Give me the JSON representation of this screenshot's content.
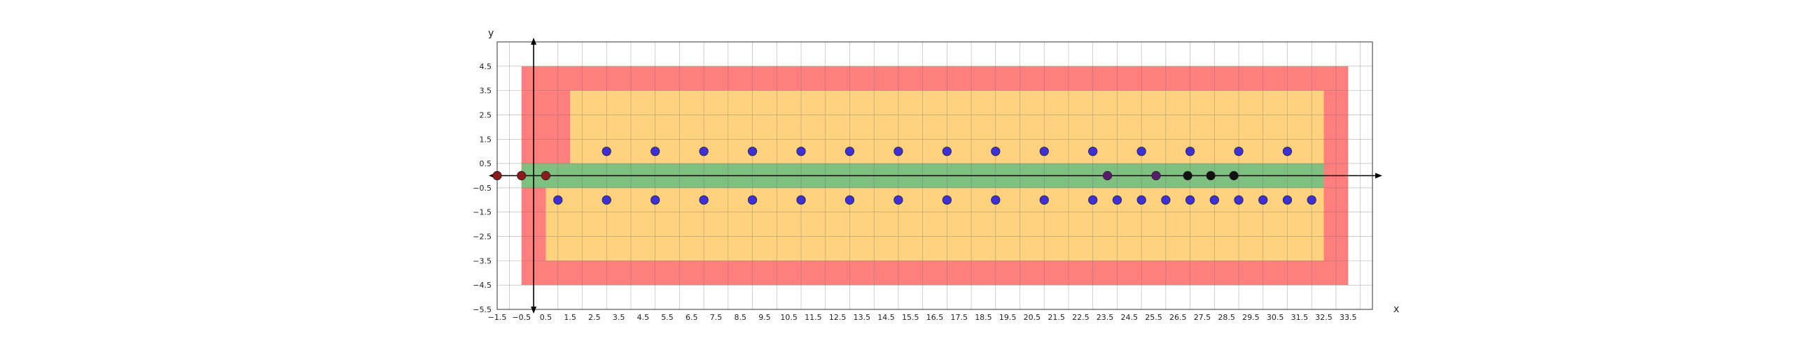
{
  "chart_data": {
    "type": "scatter",
    "title": "",
    "xlabel": "x",
    "ylabel": "y",
    "xlim": [
      -1.5,
      34.5
    ],
    "ylim": [
      -5.5,
      5.5
    ],
    "xticks": [
      -1.5,
      -0.5,
      0.5,
      1.5,
      2.5,
      3.5,
      4.5,
      5.5,
      6.5,
      7.5,
      8.5,
      9.5,
      10.5,
      11.5,
      12.5,
      13.5,
      14.5,
      15.5,
      16.5,
      17.5,
      18.5,
      19.5,
      20.5,
      21.5,
      22.5,
      23.5,
      24.5,
      25.5,
      26.5,
      27.5,
      28.5,
      29.5,
      30.5,
      31.5,
      32.5,
      33.5
    ],
    "xtick_labels": [
      "−1.5",
      "−0.5",
      "0.5",
      "1.5",
      "2.5",
      "3.5",
      "4.5",
      "5.5",
      "6.5",
      "7.5",
      "8.5",
      "9.5",
      "10.5",
      "11.5",
      "12.5",
      "13.5",
      "14.5",
      "15.5",
      "16.5",
      "17.5",
      "18.5",
      "19.5",
      "20.5",
      "21.5",
      "22.5",
      "23.5",
      "24.5",
      "25.5",
      "26.5",
      "27.5",
      "28.5",
      "29.5",
      "30.5",
      "31.5",
      "32.5",
      "33.5"
    ],
    "yticks": [
      -5.5,
      -4.5,
      -3.5,
      -2.5,
      -1.5,
      -0.5,
      0.5,
      1.5,
      2.5,
      3.5,
      4.5
    ],
    "ytick_labels": [
      "−5.5",
      "−4.5",
      "−3.5",
      "−2.5",
      "−1.5",
      "−0.5",
      "0.5",
      "1.5",
      "2.5",
      "3.5",
      "4.5"
    ],
    "grid": true,
    "regions": [
      {
        "color": "#ff7f7f",
        "x": [
          -0.5,
          33.5
        ],
        "y": [
          -4.5,
          4.5
        ]
      },
      {
        "color": "#ffd27f",
        "x": [
          1.5,
          32.5
        ],
        "y": [
          0.5,
          3.5
        ]
      },
      {
        "color": "#ffd27f",
        "x": [
          0.5,
          32.5
        ],
        "y": [
          -3.5,
          -0.5
        ]
      },
      {
        "color": "#7fbf7f",
        "x": [
          -0.5,
          32.5
        ],
        "y": [
          -0.5,
          0.5
        ]
      }
    ],
    "series": [
      {
        "color": "#3f2fd8",
        "points": [
          [
            3,
            1
          ],
          [
            5,
            1
          ],
          [
            7,
            1
          ],
          [
            9,
            1
          ],
          [
            11,
            1
          ],
          [
            13,
            1
          ],
          [
            15,
            1
          ],
          [
            17,
            1
          ],
          [
            19,
            1
          ],
          [
            21,
            1
          ],
          [
            23,
            1
          ],
          [
            25,
            1
          ],
          [
            27,
            1
          ],
          [
            29,
            1
          ],
          [
            31,
            1
          ],
          [
            1,
            -1
          ],
          [
            3,
            -1
          ],
          [
            5,
            -1
          ],
          [
            7,
            -1
          ],
          [
            9,
            -1
          ],
          [
            11,
            -1
          ],
          [
            13,
            -1
          ],
          [
            15,
            -1
          ],
          [
            17,
            -1
          ],
          [
            19,
            -1
          ],
          [
            21,
            -1
          ],
          [
            23,
            -1
          ],
          [
            24,
            -1
          ],
          [
            25,
            -1
          ],
          [
            26,
            -1
          ],
          [
            27,
            -1
          ],
          [
            28,
            -1
          ],
          [
            29,
            -1
          ],
          [
            30,
            -1
          ],
          [
            31,
            -1
          ],
          [
            32,
            -1
          ]
        ]
      },
      {
        "color": "#8b1a1a",
        "points": [
          [
            -1.5,
            0
          ],
          [
            -0.5,
            0
          ],
          [
            0.5,
            0
          ]
        ]
      },
      {
        "color": "#5a1a6e",
        "points": [
          [
            23.6,
            0
          ],
          [
            25.6,
            0
          ]
        ]
      },
      {
        "color": "#111111",
        "points": [
          [
            26.9,
            0
          ],
          [
            27.85,
            0
          ],
          [
            28.8,
            0
          ]
        ]
      }
    ]
  }
}
